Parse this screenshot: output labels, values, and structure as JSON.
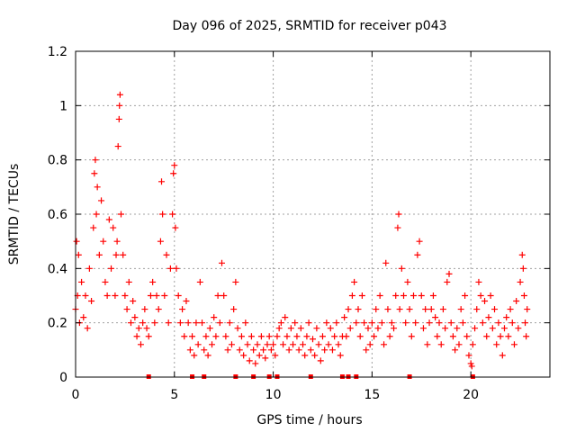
{
  "chart_data": {
    "type": "scatter",
    "title": "Day 096 of 2025, SRMTID for receiver p043",
    "xlabel": "GPS time / hours",
    "ylabel": "SRMTID / TECUs",
    "xlim": [
      0,
      24
    ],
    "ylim": [
      0,
      1.2
    ],
    "xticks": [
      {
        "value": 0,
        "label": "0"
      },
      {
        "value": 5,
        "label": "5"
      },
      {
        "value": 10,
        "label": "10"
      },
      {
        "value": 15,
        "label": "15"
      },
      {
        "value": 20,
        "label": "20"
      }
    ],
    "yticks": [
      {
        "value": 0,
        "label": "0"
      },
      {
        "value": 0.2,
        "label": "0.2"
      },
      {
        "value": 0.4,
        "label": "0.4"
      },
      {
        "value": 0.6,
        "label": "0.6"
      },
      {
        "value": 0.8,
        "label": "0.8"
      },
      {
        "value": 1.0,
        "label": "1"
      },
      {
        "value": 1.2,
        "label": "1.2"
      }
    ],
    "grid": true,
    "marker": "+",
    "color": "#ff0000",
    "series": [
      {
        "name": "SRMTID",
        "points": [
          [
            0.0,
            0.25
          ],
          [
            0.05,
            0.5
          ],
          [
            0.1,
            0.3
          ],
          [
            0.15,
            0.45
          ],
          [
            0.2,
            0.2
          ],
          [
            0.3,
            0.35
          ],
          [
            0.4,
            0.22
          ],
          [
            0.5,
            0.3
          ],
          [
            0.6,
            0.18
          ],
          [
            0.7,
            0.4
          ],
          [
            0.8,
            0.28
          ],
          [
            0.9,
            0.55
          ],
          [
            0.95,
            0.75
          ],
          [
            1.0,
            0.8
          ],
          [
            1.05,
            0.6
          ],
          [
            1.1,
            0.7
          ],
          [
            1.2,
            0.45
          ],
          [
            1.3,
            0.65
          ],
          [
            1.4,
            0.5
          ],
          [
            1.5,
            0.35
          ],
          [
            1.6,
            0.3
          ],
          [
            1.7,
            0.58
          ],
          [
            1.8,
            0.4
          ],
          [
            1.9,
            0.55
          ],
          [
            2.0,
            0.3
          ],
          [
            2.05,
            0.45
          ],
          [
            2.1,
            0.5
          ],
          [
            2.15,
            0.85
          ],
          [
            2.2,
            0.95
          ],
          [
            2.22,
            1.0
          ],
          [
            2.25,
            1.04
          ],
          [
            2.3,
            0.6
          ],
          [
            2.4,
            0.45
          ],
          [
            2.5,
            0.3
          ],
          [
            2.6,
            0.25
          ],
          [
            2.7,
            0.35
          ],
          [
            2.8,
            0.2
          ],
          [
            2.9,
            0.28
          ],
          [
            3.0,
            0.22
          ],
          [
            3.1,
            0.15
          ],
          [
            3.2,
            0.18
          ],
          [
            3.3,
            0.12
          ],
          [
            3.4,
            0.2
          ],
          [
            3.5,
            0.25
          ],
          [
            3.6,
            0.18
          ],
          [
            3.7,
            0.15
          ],
          [
            3.8,
            0.3
          ],
          [
            3.9,
            0.35
          ],
          [
            4.0,
            0.2
          ],
          [
            4.1,
            0.3
          ],
          [
            4.2,
            0.25
          ],
          [
            4.3,
            0.5
          ],
          [
            4.35,
            0.72
          ],
          [
            4.4,
            0.6
          ],
          [
            4.5,
            0.3
          ],
          [
            4.6,
            0.45
          ],
          [
            4.7,
            0.2
          ],
          [
            4.8,
            0.4
          ],
          [
            4.9,
            0.6
          ],
          [
            4.95,
            0.75
          ],
          [
            5.0,
            0.78
          ],
          [
            5.05,
            0.55
          ],
          [
            5.1,
            0.4
          ],
          [
            5.2,
            0.3
          ],
          [
            5.3,
            0.2
          ],
          [
            5.4,
            0.25
          ],
          [
            5.5,
            0.15
          ],
          [
            5.6,
            0.28
          ],
          [
            5.7,
            0.2
          ],
          [
            5.8,
            0.1
          ],
          [
            5.9,
            0.15
          ],
          [
            6.0,
            0.08
          ],
          [
            6.1,
            0.2
          ],
          [
            6.2,
            0.12
          ],
          [
            6.3,
            0.35
          ],
          [
            6.4,
            0.2
          ],
          [
            6.5,
            0.1
          ],
          [
            6.6,
            0.15
          ],
          [
            6.7,
            0.08
          ],
          [
            6.8,
            0.18
          ],
          [
            6.9,
            0.12
          ],
          [
            7.0,
            0.22
          ],
          [
            7.1,
            0.15
          ],
          [
            7.2,
            0.3
          ],
          [
            7.3,
            0.2
          ],
          [
            7.4,
            0.42
          ],
          [
            7.5,
            0.3
          ],
          [
            7.6,
            0.15
          ],
          [
            7.7,
            0.1
          ],
          [
            7.8,
            0.2
          ],
          [
            7.9,
            0.12
          ],
          [
            8.0,
            0.25
          ],
          [
            8.1,
            0.35
          ],
          [
            8.2,
            0.18
          ],
          [
            8.3,
            0.1
          ],
          [
            8.4,
            0.15
          ],
          [
            8.5,
            0.08
          ],
          [
            8.6,
            0.2
          ],
          [
            8.7,
            0.12
          ],
          [
            8.8,
            0.06
          ],
          [
            8.9,
            0.15
          ],
          [
            9.0,
            0.1
          ],
          [
            9.1,
            0.05
          ],
          [
            9.2,
            0.12
          ],
          [
            9.3,
            0.08
          ],
          [
            9.4,
            0.15
          ],
          [
            9.5,
            0.1
          ],
          [
            9.6,
            0.07
          ],
          [
            9.7,
            0.12
          ],
          [
            9.8,
            0.15
          ],
          [
            9.9,
            0.1
          ],
          [
            10.0,
            0.12
          ],
          [
            10.1,
            0.08
          ],
          [
            10.2,
            0.15
          ],
          [
            10.3,
            0.18
          ],
          [
            10.4,
            0.2
          ],
          [
            10.5,
            0.12
          ],
          [
            10.6,
            0.22
          ],
          [
            10.7,
            0.15
          ],
          [
            10.8,
            0.1
          ],
          [
            10.9,
            0.18
          ],
          [
            11.0,
            0.12
          ],
          [
            11.1,
            0.2
          ],
          [
            11.2,
            0.15
          ],
          [
            11.3,
            0.1
          ],
          [
            11.4,
            0.18
          ],
          [
            11.5,
            0.12
          ],
          [
            11.6,
            0.08
          ],
          [
            11.7,
            0.15
          ],
          [
            11.8,
            0.2
          ],
          [
            11.9,
            0.1
          ],
          [
            12.0,
            0.14
          ],
          [
            12.1,
            0.08
          ],
          [
            12.2,
            0.18
          ],
          [
            12.3,
            0.12
          ],
          [
            12.4,
            0.06
          ],
          [
            12.5,
            0.15
          ],
          [
            12.6,
            0.1
          ],
          [
            12.7,
            0.2
          ],
          [
            12.8,
            0.12
          ],
          [
            12.9,
            0.18
          ],
          [
            13.0,
            0.1
          ],
          [
            13.1,
            0.15
          ],
          [
            13.2,
            0.2
          ],
          [
            13.3,
            0.12
          ],
          [
            13.4,
            0.08
          ],
          [
            13.5,
            0.15
          ],
          [
            13.6,
            0.22
          ],
          [
            13.7,
            0.15
          ],
          [
            13.8,
            0.25
          ],
          [
            13.9,
            0.18
          ],
          [
            14.0,
            0.3
          ],
          [
            14.1,
            0.35
          ],
          [
            14.2,
            0.2
          ],
          [
            14.3,
            0.25
          ],
          [
            14.4,
            0.15
          ],
          [
            14.5,
            0.3
          ],
          [
            14.6,
            0.2
          ],
          [
            14.7,
            0.1
          ],
          [
            14.8,
            0.18
          ],
          [
            14.9,
            0.12
          ],
          [
            15.0,
            0.2
          ],
          [
            15.1,
            0.15
          ],
          [
            15.2,
            0.25
          ],
          [
            15.3,
            0.18
          ],
          [
            15.4,
            0.3
          ],
          [
            15.5,
            0.2
          ],
          [
            15.6,
            0.12
          ],
          [
            15.7,
            0.42
          ],
          [
            15.8,
            0.25
          ],
          [
            15.9,
            0.15
          ],
          [
            16.0,
            0.2
          ],
          [
            16.1,
            0.18
          ],
          [
            16.2,
            0.3
          ],
          [
            16.3,
            0.55
          ],
          [
            16.35,
            0.6
          ],
          [
            16.4,
            0.25
          ],
          [
            16.5,
            0.4
          ],
          [
            16.6,
            0.3
          ],
          [
            16.7,
            0.2
          ],
          [
            16.8,
            0.35
          ],
          [
            16.9,
            0.25
          ],
          [
            17.0,
            0.15
          ],
          [
            17.1,
            0.3
          ],
          [
            17.2,
            0.2
          ],
          [
            17.3,
            0.45
          ],
          [
            17.4,
            0.5
          ],
          [
            17.5,
            0.3
          ],
          [
            17.6,
            0.18
          ],
          [
            17.7,
            0.25
          ],
          [
            17.8,
            0.12
          ],
          [
            17.9,
            0.2
          ],
          [
            18.0,
            0.25
          ],
          [
            18.1,
            0.3
          ],
          [
            18.2,
            0.22
          ],
          [
            18.3,
            0.15
          ],
          [
            18.4,
            0.2
          ],
          [
            18.5,
            0.12
          ],
          [
            18.6,
            0.25
          ],
          [
            18.7,
            0.18
          ],
          [
            18.8,
            0.35
          ],
          [
            18.9,
            0.38
          ],
          [
            19.0,
            0.2
          ],
          [
            19.1,
            0.15
          ],
          [
            19.2,
            0.1
          ],
          [
            19.3,
            0.18
          ],
          [
            19.4,
            0.12
          ],
          [
            19.5,
            0.25
          ],
          [
            19.6,
            0.2
          ],
          [
            19.7,
            0.3
          ],
          [
            19.8,
            0.15
          ],
          [
            19.9,
            0.08
          ],
          [
            20.0,
            0.05
          ],
          [
            20.05,
            0.04
          ],
          [
            20.1,
            0.12
          ],
          [
            20.2,
            0.18
          ],
          [
            20.3,
            0.25
          ],
          [
            20.4,
            0.35
          ],
          [
            20.5,
            0.3
          ],
          [
            20.6,
            0.2
          ],
          [
            20.7,
            0.28
          ],
          [
            20.8,
            0.15
          ],
          [
            20.9,
            0.22
          ],
          [
            21.0,
            0.3
          ],
          [
            21.1,
            0.18
          ],
          [
            21.2,
            0.25
          ],
          [
            21.3,
            0.12
          ],
          [
            21.4,
            0.2
          ],
          [
            21.5,
            0.15
          ],
          [
            21.6,
            0.08
          ],
          [
            21.7,
            0.18
          ],
          [
            21.8,
            0.22
          ],
          [
            21.9,
            0.15
          ],
          [
            22.0,
            0.25
          ],
          [
            22.1,
            0.2
          ],
          [
            22.2,
            0.12
          ],
          [
            22.3,
            0.28
          ],
          [
            22.4,
            0.18
          ],
          [
            22.5,
            0.35
          ],
          [
            22.6,
            0.45
          ],
          [
            22.65,
            0.4
          ],
          [
            22.7,
            0.3
          ],
          [
            22.75,
            0.2
          ],
          [
            22.8,
            0.15
          ],
          [
            22.85,
            0.25
          ]
        ]
      }
    ],
    "zero_markers": [
      3.7,
      5.9,
      6.5,
      8.1,
      9.0,
      9.8,
      10.2,
      11.9,
      13.5,
      13.8,
      14.2,
      16.9,
      20.1
    ]
  }
}
